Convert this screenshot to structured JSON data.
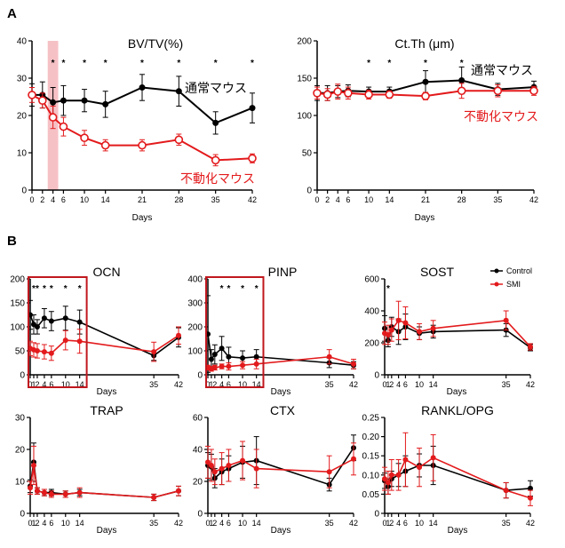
{
  "panel_labels": [
    "A",
    "B"
  ],
  "colors": {
    "control": "#000000",
    "treated": "#e31a1c",
    "highlight": "#f4b6bb",
    "box": "#c0171e"
  },
  "legend": {
    "control": "Control",
    "treated": "SMI"
  },
  "annotations": {
    "a1_control": "通常マウス",
    "a1_treated": "不動化マウス",
    "a2_control": "通常マウス",
    "a2_treated": "不動化マウス"
  },
  "chart_data": [
    {
      "id": "a1",
      "type": "line",
      "title": "BV/TV(%)",
      "xlabel": "Days",
      "ylabel": "",
      "ylim": [
        0,
        40
      ],
      "yticks": [
        0,
        10,
        20,
        30,
        40
      ],
      "xticks": [
        0,
        2,
        4,
        6,
        10,
        14,
        21,
        28,
        35,
        42
      ],
      "xlim": [
        0,
        42
      ],
      "highlight_x": [
        3,
        5
      ],
      "series": [
        {
          "role": "control",
          "x": [
            0,
            2,
            4,
            6,
            10,
            14,
            21,
            28,
            35,
            42
          ],
          "values": [
            25.5,
            25.5,
            23.5,
            24,
            24,
            23,
            27.5,
            26.5,
            18,
            22
          ],
          "errors": [
            3,
            3.5,
            4,
            4,
            3,
            3.5,
            3.5,
            4,
            3,
            4
          ]
        },
        {
          "role": "treated",
          "x": [
            0,
            2,
            4,
            6,
            10,
            14,
            21,
            28,
            35,
            42
          ],
          "values": [
            25.5,
            24,
            19.5,
            17,
            14,
            12,
            12,
            13.5,
            8,
            8.5
          ],
          "errors": [
            2,
            2,
            3,
            2.5,
            2,
            1.5,
            1.5,
            1.5,
            1.5,
            1.2
          ]
        }
      ],
      "sig_x": [
        4,
        6,
        10,
        14,
        21,
        28,
        35,
        42
      ]
    },
    {
      "id": "a2",
      "type": "line",
      "title": "Ct.Th (μm)",
      "xlabel": "Days",
      "ylabel": "",
      "ylim": [
        0,
        200
      ],
      "yticks": [
        0,
        50,
        100,
        150,
        200
      ],
      "xticks": [
        0,
        2,
        4,
        6,
        10,
        14,
        21,
        28,
        35,
        42
      ],
      "xlim": [
        0,
        42
      ],
      "series": [
        {
          "role": "control",
          "x": [
            0,
            2,
            4,
            6,
            10,
            14,
            21,
            28,
            35,
            42
          ],
          "values": [
            130,
            130,
            132,
            133,
            132,
            132,
            145,
            147,
            135,
            138
          ],
          "errors": [
            10,
            10,
            8,
            8,
            6,
            6,
            15,
            18,
            8,
            8
          ]
        },
        {
          "role": "treated",
          "x": [
            0,
            2,
            4,
            6,
            10,
            14,
            21,
            28,
            35,
            42
          ],
          "values": [
            130,
            128,
            132,
            130,
            128,
            128,
            126,
            133,
            133,
            133
          ],
          "errors": [
            8,
            8,
            10,
            8,
            6,
            5,
            5,
            10,
            8,
            6
          ]
        }
      ],
      "sig_x": [
        10,
        14,
        21,
        28
      ]
    },
    {
      "id": "ocn",
      "type": "line",
      "title": "OCN",
      "xlabel": "Days",
      "ylabel": "",
      "ylim": [
        0,
        200
      ],
      "yticks": [
        0,
        50,
        100,
        150,
        200
      ],
      "xticks": [
        0,
        1,
        2,
        4,
        6,
        10,
        14,
        35,
        42
      ],
      "xlim": [
        0,
        42
      ],
      "box_x": [
        0,
        16
      ],
      "series": [
        {
          "role": "control",
          "x": [
            0,
            1,
            2,
            4,
            6,
            10,
            14,
            35,
            42
          ],
          "values": [
            125,
            105,
            100,
            118,
            112,
            118,
            110,
            40,
            78
          ],
          "errors": [
            30,
            20,
            15,
            20,
            20,
            25,
            25,
            10,
            20
          ]
        },
        {
          "role": "treated",
          "x": [
            0,
            1,
            2,
            4,
            6,
            10,
            14,
            35,
            42
          ],
          "values": [
            55,
            52,
            50,
            48,
            45,
            72,
            70,
            48,
            82
          ],
          "errors": [
            15,
            15,
            15,
            15,
            15,
            20,
            25,
            20,
            18
          ]
        }
      ],
      "sig_x": [
        1,
        2,
        4,
        6,
        10,
        14
      ]
    },
    {
      "id": "pinp",
      "type": "line",
      "title": "PINP",
      "xlabel": "Days",
      "ylabel": "",
      "ylim": [
        0,
        400
      ],
      "yticks": [
        0,
        100,
        200,
        300,
        400
      ],
      "xticks": [
        0,
        1,
        2,
        4,
        6,
        10,
        14,
        35,
        42
      ],
      "xlim": [
        0,
        42
      ],
      "box_x": [
        0,
        16
      ],
      "series": [
        {
          "role": "control",
          "x": [
            0,
            1,
            2,
            4,
            6,
            10,
            14,
            35,
            42
          ],
          "values": [
            170,
            65,
            85,
            110,
            75,
            70,
            75,
            50,
            40
          ],
          "errors": [
            160,
            40,
            40,
            50,
            40,
            30,
            30,
            20,
            15
          ]
        },
        {
          "role": "treated",
          "x": [
            0,
            1,
            2,
            4,
            6,
            10,
            14,
            35,
            42
          ],
          "values": [
            30,
            25,
            30,
            35,
            35,
            40,
            45,
            75,
            45
          ],
          "errors": [
            10,
            10,
            10,
            10,
            15,
            15,
            20,
            30,
            20
          ]
        }
      ],
      "sig_x": [
        4,
        6,
        10,
        14
      ]
    },
    {
      "id": "sost",
      "type": "line",
      "title": "SOST",
      "xlabel": "Days",
      "ylabel": "",
      "ylim": [
        0,
        600
      ],
      "yticks": [
        0,
        200,
        400,
        600
      ],
      "xticks": [
        0,
        1,
        2,
        4,
        6,
        10,
        14,
        35,
        42
      ],
      "xlim": [
        0,
        42
      ],
      "series": [
        {
          "role": "control",
          "x": [
            0,
            1,
            2,
            4,
            6,
            10,
            14,
            35,
            42
          ],
          "values": [
            290,
            215,
            300,
            270,
            300,
            260,
            270,
            280,
            170
          ],
          "errors": [
            80,
            40,
            60,
            80,
            80,
            40,
            40,
            40,
            20
          ]
        },
        {
          "role": "treated",
          "x": [
            0,
            1,
            2,
            4,
            6,
            10,
            14,
            35,
            42
          ],
          "values": [
            260,
            250,
            280,
            340,
            325,
            270,
            290,
            340,
            175
          ],
          "errors": [
            70,
            60,
            70,
            120,
            100,
            50,
            50,
            60,
            20
          ]
        }
      ],
      "sig_x": [
        1
      ]
    },
    {
      "id": "trap",
      "type": "line",
      "title": "TRAP",
      "xlabel": "Days",
      "ylabel": "",
      "ylim": [
        0,
        30
      ],
      "yticks": [
        0,
        10,
        20,
        30
      ],
      "xticks": [
        0,
        1,
        2,
        4,
        6,
        10,
        14,
        35,
        42
      ],
      "xlim": [
        0,
        42
      ],
      "series": [
        {
          "role": "control",
          "x": [
            0,
            1,
            2,
            4,
            6,
            10,
            14,
            35,
            42
          ],
          "values": [
            8.5,
            16,
            7,
            6.5,
            6.5,
            6,
            6.5,
            5,
            7
          ],
          "errors": [
            2,
            6,
            1,
            1,
            1,
            1,
            1,
            1,
            1.5
          ]
        },
        {
          "role": "treated",
          "x": [
            0,
            1,
            2,
            4,
            6,
            10,
            14,
            35,
            42
          ],
          "values": [
            8,
            15,
            7,
            6.5,
            6,
            6,
            6.5,
            5,
            7
          ],
          "errors": [
            2,
            6,
            1,
            1,
            1,
            1,
            1.5,
            1,
            1.5
          ]
        }
      ]
    },
    {
      "id": "ctx",
      "type": "line",
      "title": "CTX",
      "xlabel": "Days",
      "ylabel": "",
      "ylim": [
        0,
        60
      ],
      "yticks": [
        0,
        20,
        40,
        60
      ],
      "xticks": [
        0,
        1,
        2,
        4,
        6,
        10,
        14,
        35,
        42
      ],
      "xlim": [
        0,
        42
      ],
      "series": [
        {
          "role": "control",
          "x": [
            0,
            1,
            2,
            4,
            6,
            10,
            14,
            35,
            42
          ],
          "values": [
            30,
            29,
            22,
            26,
            28,
            32,
            33,
            18,
            41
          ],
          "errors": [
            8,
            8,
            6,
            8,
            8,
            10,
            15,
            4,
            8
          ]
        },
        {
          "role": "treated",
          "x": [
            0,
            1,
            2,
            4,
            6,
            10,
            14,
            35,
            42
          ],
          "values": [
            32,
            30,
            26,
            28,
            30,
            33,
            28,
            26,
            34
          ],
          "errors": [
            10,
            10,
            8,
            10,
            10,
            12,
            12,
            10,
            10
          ]
        }
      ]
    },
    {
      "id": "rankl",
      "type": "line",
      "title": "RANKL/OPG",
      "xlabel": "Days",
      "ylabel": "",
      "ylim": [
        0,
        0.25
      ],
      "yticks": [
        0,
        0.05,
        0.1,
        0.15,
        0.2,
        0.25
      ],
      "xticks": [
        0,
        1,
        2,
        4,
        6,
        10,
        14,
        35,
        42
      ],
      "xlim": [
        0,
        42
      ],
      "series": [
        {
          "role": "control",
          "x": [
            0,
            1,
            2,
            4,
            6,
            10,
            14,
            35,
            42
          ],
          "values": [
            0.085,
            0.07,
            0.09,
            0.1,
            0.11,
            0.125,
            0.125,
            0.06,
            0.065
          ],
          "errors": [
            0.02,
            0.02,
            0.02,
            0.03,
            0.04,
            0.03,
            0.05,
            0.02,
            0.02
          ]
        },
        {
          "role": "treated",
          "x": [
            0,
            1,
            2,
            4,
            6,
            10,
            14,
            35,
            42
          ],
          "values": [
            0.09,
            0.08,
            0.1,
            0.1,
            0.14,
            0.12,
            0.145,
            0.06,
            0.04
          ],
          "errors": [
            0.03,
            0.03,
            0.04,
            0.04,
            0.07,
            0.05,
            0.06,
            0.02,
            0.02
          ]
        }
      ]
    }
  ]
}
